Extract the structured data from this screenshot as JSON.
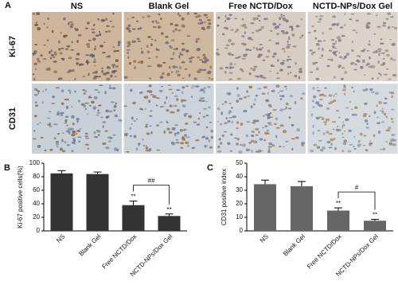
{
  "panel_a": {
    "label": "A",
    "columns": [
      "NS",
      "Blank Gel",
      "Free NCTD/Dox",
      "NCTD-NPs/Dox Gel"
    ],
    "rows": [
      "Ki-67",
      "CD31"
    ]
  },
  "chart_data": [
    {
      "type": "bar",
      "panel": "B",
      "ylabel": "Ki-67 positive cells(%)",
      "categories": [
        "NS",
        "Blank Gel",
        "Free NCTD/Dox",
        "NCTD-NPs/Dox Gel"
      ],
      "values": [
        85,
        84,
        38,
        22
      ],
      "errors": [
        4,
        3,
        6,
        3
      ],
      "color": "#333333",
      "significance": [
        null,
        null,
        "**",
        "**"
      ],
      "comparison": "##",
      "ylim": [
        0,
        100
      ],
      "yticks": [
        0,
        20,
        40,
        60,
        80,
        100
      ]
    },
    {
      "type": "bar",
      "panel": "C",
      "ylabel": "CD31 positive index",
      "categories": [
        "NS",
        "Blank Gel",
        "Free NCTD/Dox",
        "NCTD-NPs/Dox Gel"
      ],
      "values": [
        34.5,
        33,
        15,
        7.5
      ],
      "errors": [
        3,
        3.5,
        2,
        1
      ],
      "color": "#666666",
      "significance": [
        null,
        null,
        "**",
        "**"
      ],
      "comparison": "#",
      "ylim": [
        0,
        50
      ],
      "yticks": [
        0,
        10,
        20,
        30,
        40,
        50
      ]
    }
  ]
}
